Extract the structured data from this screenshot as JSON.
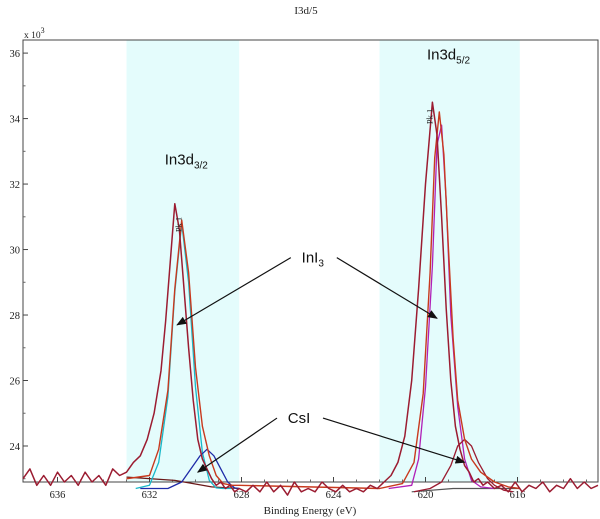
{
  "chart_data": {
    "type": "line",
    "title": "I3d/5",
    "xlabel": "Binding Energy (eV)",
    "ylabel": "",
    "y_multiplier": "x 10",
    "y_multiplier_exp": "3",
    "x_reversed": true,
    "xlim": [
      637.5,
      612.5
    ],
    "ylim": [
      22.9,
      36.4
    ],
    "x_ticks": [
      636,
      632,
      628,
      624,
      620,
      616
    ],
    "y_ticks": [
      24,
      26,
      28,
      30,
      32,
      34,
      36
    ],
    "shaded_regions": [
      {
        "x_from": 633.0,
        "x_to": 628.1,
        "color": "#e4fcfc"
      },
      {
        "x_from": 622.0,
        "x_to": 615.9,
        "color": "#e4fcfc"
      }
    ],
    "peak_labels": [
      {
        "text": "Pk 1",
        "x": 630.6,
        "y": 31.0
      },
      {
        "text": "Pk 1",
        "x": 619.7,
        "y": 34.3
      }
    ],
    "series": [
      {
        "kind": "spectrum",
        "color": "#9b1c31",
        "x": [
          637.5,
          637.2,
          636.9,
          636.6,
          636.3,
          636.0,
          635.7,
          635.4,
          635.1,
          634.8,
          634.5,
          634.2,
          633.9,
          633.6,
          633.3,
          633.0,
          632.7,
          632.4,
          632.1,
          631.8,
          631.5,
          631.3,
          631.1,
          630.9,
          630.7,
          630.5,
          630.3,
          630.1,
          629.9,
          629.7,
          629.5,
          629.3,
          629.1,
          628.9,
          628.7,
          628.5,
          628.3,
          628.1,
          627.8,
          627.5,
          627.2,
          626.9,
          626.6,
          626.3,
          626.0,
          625.7,
          625.4,
          625.1,
          624.8,
          624.5,
          624.2,
          623.9,
          623.6,
          623.3,
          623.0,
          622.7,
          622.4,
          622.1,
          621.8,
          621.5,
          621.2,
          620.9,
          620.6,
          620.3,
          620.0,
          619.7,
          619.5,
          619.3,
          619.1,
          618.9,
          618.7,
          618.5,
          618.3,
          618.1,
          617.9,
          617.7,
          617.5,
          617.3,
          617.0,
          616.7,
          616.4,
          616.1,
          615.8,
          615.5,
          615.2,
          614.9,
          614.6,
          614.3,
          614.0,
          613.7,
          613.4,
          613.1,
          612.8,
          612.5
        ],
        "y": [
          23.0,
          23.3,
          22.8,
          23.1,
          22.8,
          23.2,
          22.9,
          23.1,
          22.8,
          23.2,
          22.9,
          23.1,
          22.8,
          23.3,
          23.1,
          23.2,
          23.5,
          23.7,
          24.2,
          25.0,
          26.3,
          27.8,
          29.6,
          31.4,
          30.6,
          28.8,
          27.0,
          25.4,
          24.2,
          23.6,
          23.3,
          23.0,
          22.8,
          22.9,
          22.7,
          22.8,
          22.6,
          22.7,
          22.6,
          22.8,
          22.6,
          22.9,
          22.6,
          22.8,
          22.5,
          22.9,
          22.6,
          22.7,
          22.6,
          22.9,
          22.7,
          22.6,
          22.8,
          22.6,
          22.7,
          22.6,
          22.8,
          22.7,
          22.9,
          23.1,
          23.5,
          24.3,
          26.0,
          28.8,
          32.0,
          34.5,
          33.5,
          31.0,
          28.2,
          26.0,
          24.6,
          23.9,
          23.4,
          23.2,
          22.9,
          23.0,
          22.8,
          22.9,
          22.7,
          22.8,
          22.6,
          22.9,
          22.6,
          22.8,
          22.7,
          22.9,
          22.6,
          22.8,
          22.7,
          23.0,
          22.7,
          22.9,
          22.7,
          22.8
        ]
      },
      {
        "kind": "envelope",
        "color": "#c8391e",
        "x": [
          633.0,
          632.0,
          631.6,
          631.2,
          630.9,
          630.6,
          630.3,
          630.0,
          629.7,
          629.4,
          629.1,
          628.8,
          628.4,
          628.1,
          622.0,
          621.0,
          620.5,
          620.1,
          619.8,
          619.6,
          619.4,
          619.2,
          619.0,
          618.8,
          618.6,
          618.3,
          618.0,
          617.6,
          617.0,
          616.4,
          615.9
        ],
        "y": [
          23.0,
          23.1,
          23.9,
          25.7,
          28.8,
          30.9,
          29.3,
          26.4,
          24.6,
          23.7,
          23.1,
          22.85,
          22.8,
          22.8,
          22.7,
          22.85,
          23.5,
          25.6,
          29.3,
          32.8,
          34.2,
          32.9,
          30.0,
          27.3,
          25.4,
          24.2,
          23.6,
          23.2,
          22.9,
          22.75,
          22.7
        ]
      },
      {
        "kind": "component",
        "color": "#18b8c9",
        "x": [
          632.6,
          632.0,
          631.6,
          631.2,
          630.9,
          630.6,
          630.3,
          630.0,
          629.7,
          629.4,
          629.1,
          628.8,
          628.4
        ],
        "y": [
          22.7,
          22.8,
          23.5,
          25.5,
          28.7,
          30.8,
          29.0,
          25.8,
          23.8,
          22.95,
          22.72,
          22.7,
          22.7
        ]
      },
      {
        "kind": "component",
        "color": "#1f2ba8",
        "x": [
          632.4,
          631.2,
          630.6,
          630.2,
          629.8,
          629.5,
          629.2,
          628.9,
          628.6,
          628.3,
          628.1
        ],
        "y": [
          22.7,
          22.7,
          22.9,
          23.3,
          23.7,
          23.9,
          23.7,
          23.3,
          22.9,
          22.72,
          22.7
        ]
      },
      {
        "kind": "component",
        "color": "#b020b8",
        "x": [
          621.6,
          620.6,
          620.3,
          620.0,
          619.7,
          619.5,
          619.3,
          619.1,
          618.9,
          618.6,
          618.3,
          618.0,
          617.6,
          617.0
        ],
        "y": [
          22.7,
          22.8,
          23.6,
          25.8,
          29.5,
          33.2,
          33.8,
          31.5,
          28.0,
          25.2,
          23.6,
          22.95,
          22.75,
          22.7
        ]
      },
      {
        "kind": "component",
        "color": "#9b1c31",
        "x": [
          620.5,
          619.8,
          619.3,
          618.9,
          618.6,
          618.3,
          618.0,
          617.7,
          617.3,
          617.0,
          616.6,
          616.2
        ],
        "y": [
          22.6,
          22.7,
          22.9,
          23.4,
          24.0,
          24.2,
          24.0,
          23.5,
          23.0,
          22.8,
          22.65,
          22.6
        ]
      },
      {
        "kind": "baseline",
        "color": "#6a1818",
        "x": [
          633.0,
          630.9,
          629.3,
          628.1
        ],
        "y": [
          23.05,
          22.95,
          22.75,
          22.7
        ]
      },
      {
        "kind": "baseline",
        "color": "#555555",
        "x": [
          620.6,
          618.8,
          615.9
        ],
        "y": [
          22.6,
          22.7,
          22.7
        ]
      }
    ],
    "annotations": [
      {
        "label": "In3d",
        "sub": "3/2",
        "name": "label-in3d-3-2",
        "x": 630.4,
        "y": 32.6
      },
      {
        "label": "In3d",
        "sub": "5/2",
        "name": "label-in3d-5-2",
        "x": 619.0,
        "y": 35.8
      },
      {
        "label": "InI",
        "sub": "3",
        "name": "label-ini3",
        "x": 624.9,
        "y": 29.6,
        "arrows": [
          {
            "x": 630.8,
            "y": 27.7
          },
          {
            "x": 619.5,
            "y": 27.9
          }
        ]
      },
      {
        "label": "CsI",
        "sub": "",
        "name": "label-csi",
        "x": 625.5,
        "y": 24.7,
        "arrows": [
          {
            "x": 629.9,
            "y": 23.2
          },
          {
            "x": 618.3,
            "y": 23.5
          }
        ]
      }
    ]
  }
}
